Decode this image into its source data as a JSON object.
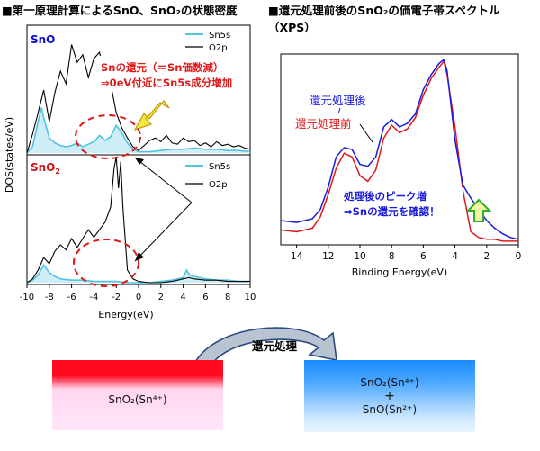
{
  "left_panel": {
    "heading": "■第一原理計算によるSnO、SnO₂の状態密度",
    "ylabel": "DOS(states/eV)",
    "xlabel": "Energy(eV)",
    "xticks": [
      "-10",
      "-8",
      "-6",
      "-4",
      "-2",
      "0",
      "2",
      "4",
      "6",
      "8",
      "10"
    ],
    "top_label": "SnO",
    "bottom_label": "SnO",
    "bottom_label_sub": "2",
    "annotation_line1": "Snの還元（＝Sn価数減）",
    "annotation_line2": "⇒0eV付近にSn5s成分増加"
  },
  "right_panel": {
    "heading": "■還元処理前後のSnO₂の価電子帯スペクトル（XPS）",
    "xlabel": "Binding Energy(eV)",
    "xticks": [
      "14",
      "12",
      "10",
      "8",
      "6",
      "4",
      "2",
      "0"
    ],
    "label_after": "還元処理後",
    "label_before": "還元処理前",
    "annotation_line1": "処理後のピーク増",
    "annotation_line2": "⇒Snの還元を確認！"
  },
  "process": {
    "label": "還元処理",
    "before_box": "SnO₂(Sn⁴⁺)",
    "after_line1": "SnO₂(Sn⁴⁺)",
    "after_plus": "+",
    "after_line2": "SnO(Sn²⁺)"
  },
  "colors": {
    "sn5s": "#4fc3e0",
    "o2p": "#000000",
    "xps_after": "#1a1adc",
    "xps_before": "#e01818",
    "annotation_red": "#e01818",
    "annotation_blue": "#1a1adc",
    "yellow_arrow": "#f2ea3a",
    "green_arrow": "#2eae2e"
  },
  "chart_data": [
    {
      "type": "area",
      "panel": "SnO",
      "xlabel": "Energy(eV)",
      "ylabel": "DOS(states/eV)",
      "xlim": [
        -10,
        10
      ],
      "ylim": [
        0,
        10
      ],
      "legend": "top-right",
      "series": [
        {
          "name": "Sn5s",
          "x": [
            -10,
            -9.5,
            -9,
            -8.7,
            -8.5,
            -8,
            -7.5,
            -7,
            -6.5,
            -6,
            -5.5,
            -5,
            -4.5,
            -4,
            -3.5,
            -3,
            -2.5,
            -2,
            -1.5,
            -1,
            -0.5,
            0,
            1,
            2,
            3,
            4,
            5,
            6,
            7,
            8,
            9,
            10
          ],
          "y": [
            0,
            0.5,
            2.5,
            3.6,
            2.8,
            1.2,
            0.8,
            0.6,
            0.5,
            0.6,
            0.8,
            0.5,
            0.7,
            0.9,
            1.4,
            1.0,
            1.3,
            2.2,
            1.6,
            0.8,
            0.3,
            0.1,
            0.1,
            0.2,
            0.3,
            0.3,
            0.4,
            0.3,
            0.3,
            0.2,
            0.2,
            0.1
          ]
        },
        {
          "name": "O2p",
          "x": [
            -10,
            -9.5,
            -9,
            -8.5,
            -8,
            -7.5,
            -7,
            -6.5,
            -6,
            -5.5,
            -5,
            -4.5,
            -4,
            -3.5,
            -3,
            -2.5,
            -2,
            -1.5,
            -1,
            -0.5,
            0,
            0.5,
            1,
            1.5,
            2,
            2.5,
            3,
            3.5,
            4,
            4.5,
            5,
            5.5,
            6,
            6.5,
            7,
            7.5,
            8,
            8.5,
            9,
            9.5,
            10
          ],
          "y": [
            0,
            1.5,
            3.2,
            5.0,
            2.5,
            4.8,
            6.5,
            5.5,
            8.6,
            7.2,
            7.8,
            6.0,
            7.5,
            8.0,
            6.0,
            5.5,
            3.2,
            2.0,
            1.2,
            0.5,
            0.2,
            0.6,
            1.0,
            1.2,
            0.9,
            1.4,
            0.8,
            0.7,
            1.2,
            0.9,
            1.0,
            0.6,
            0.8,
            0.5,
            0.9,
            0.6,
            0.7,
            0.5,
            0.6,
            0.4,
            0.3
          ]
        }
      ]
    },
    {
      "type": "area",
      "panel": "SnO2",
      "xlabel": "Energy(eV)",
      "ylabel": "DOS(states/eV)",
      "xlim": [
        -10,
        10
      ],
      "ylim": [
        0,
        10
      ],
      "legend": "top-right",
      "series": [
        {
          "name": "Sn5s",
          "x": [
            -10,
            -9.5,
            -9,
            -8.5,
            -8,
            -7.5,
            -7,
            -6,
            -5,
            -4,
            -3,
            -2,
            -1,
            0,
            1,
            2,
            3,
            4,
            4.3,
            4.6,
            5,
            5.5,
            6,
            7,
            8,
            9,
            10
          ],
          "y": [
            0,
            0.2,
            0.6,
            1.4,
            0.8,
            0.5,
            0.3,
            0.2,
            0.2,
            0.1,
            0.1,
            0.1,
            0.0,
            0.0,
            0.0,
            0.1,
            0.2,
            0.4,
            1.0,
            0.6,
            0.5,
            0.4,
            0.3,
            0.2,
            0.2,
            0.1,
            0.1
          ]
        },
        {
          "name": "O2p",
          "x": [
            -10,
            -9.5,
            -9,
            -8.5,
            -8,
            -7.5,
            -7,
            -6.5,
            -6,
            -5.5,
            -5,
            -4.5,
            -4,
            -3.5,
            -3,
            -2.5,
            -2.2,
            -2,
            -1.8,
            -1.6,
            -1.4,
            -1.2,
            -1,
            -0.5,
            0,
            1,
            2,
            3,
            4,
            4.5,
            5,
            6,
            7,
            8,
            9,
            10
          ],
          "y": [
            0,
            0.3,
            1.0,
            2.0,
            1.5,
            2.5,
            3.0,
            2.6,
            3.5,
            2.8,
            3.5,
            4.2,
            3.6,
            4.2,
            4.8,
            6.0,
            9.0,
            10.0,
            7.5,
            9.6,
            6.0,
            3.5,
            1.0,
            0.3,
            0.1,
            0.0,
            0.0,
            0.1,
            0.3,
            0.4,
            0.3,
            0.2,
            0.2,
            0.1,
            0.1,
            0.1
          ]
        }
      ]
    },
    {
      "type": "line",
      "panel": "XPS",
      "xlabel": "Binding Energy(eV)",
      "xlim": [
        15,
        0
      ],
      "ylim": [
        0,
        10
      ],
      "series": [
        {
          "name": "還元処理後",
          "x": [
            15,
            14,
            13,
            12.5,
            12,
            11.5,
            11,
            10.5,
            10,
            9.5,
            9,
            8.5,
            8,
            7.5,
            7,
            6.5,
            6,
            5.5,
            5,
            4.7,
            4.5,
            4,
            3.5,
            3,
            2.5,
            2,
            1.5,
            1,
            0.5,
            0
          ],
          "y": [
            1.2,
            1.1,
            1.3,
            1.8,
            3.0,
            4.6,
            5.1,
            5.0,
            4.2,
            4.1,
            4.6,
            6.2,
            6.6,
            6.2,
            6.4,
            6.9,
            8.2,
            9.0,
            9.6,
            9.8,
            9.2,
            5.5,
            3.1,
            2.4,
            1.8,
            1.2,
            0.8,
            0.5,
            0.3,
            0.2
          ]
        },
        {
          "name": "還元処理前",
          "x": [
            15,
            14,
            13,
            12.5,
            12,
            11.5,
            11,
            10.5,
            10,
            9.5,
            9,
            8.5,
            8,
            7.5,
            7,
            6.5,
            6,
            5.5,
            5,
            4.7,
            4.5,
            4,
            3.5,
            3,
            2.5,
            2,
            1.5,
            1,
            0.5,
            0
          ],
          "y": [
            0.7,
            0.6,
            0.8,
            1.4,
            2.6,
            4.0,
            4.8,
            4.6,
            3.6,
            3.3,
            3.9,
            5.6,
            6.3,
            5.9,
            6.1,
            6.7,
            7.9,
            8.8,
            9.4,
            9.7,
            9.0,
            6.2,
            2.8,
            0.6,
            0.3,
            0.2,
            0.2,
            0.1,
            0.1,
            0.1
          ]
        }
      ]
    }
  ]
}
